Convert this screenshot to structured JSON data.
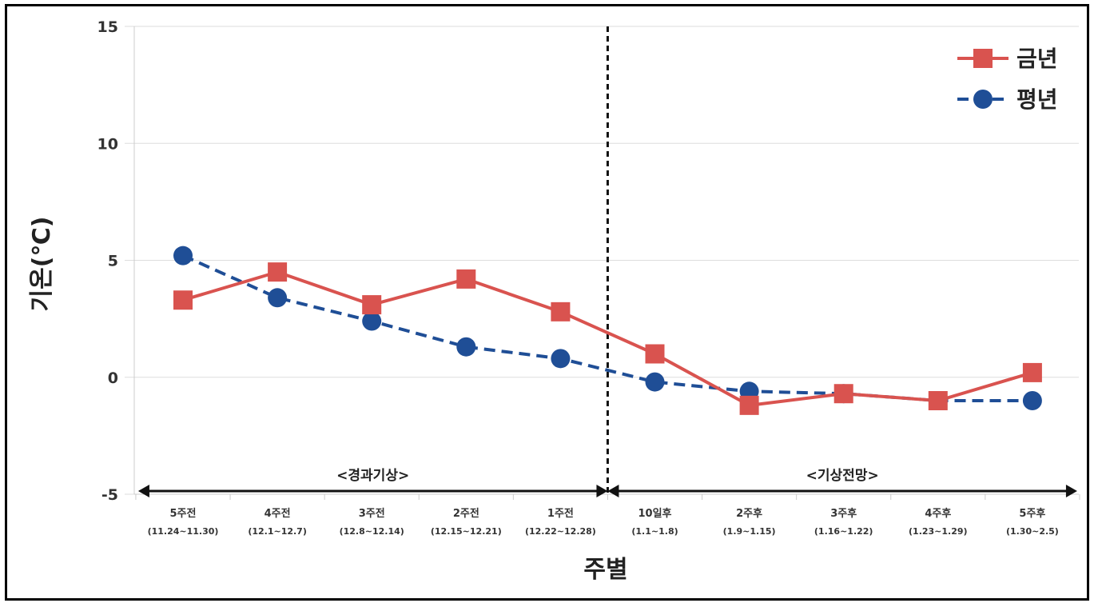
{
  "chart_data": {
    "type": "line",
    "xlabel": "주별",
    "ylabel": "기온(℃)",
    "ylim": [
      -5,
      15
    ],
    "yticks": [
      -5,
      0,
      5,
      10,
      15
    ],
    "grid": "horizontal",
    "legend_position": "top-right",
    "categories": [
      "5주전",
      "4주전",
      "3주전",
      "2주전",
      "1주전",
      "10일후",
      "2주후",
      "3주후",
      "4주후",
      "5주후"
    ],
    "category_ranges": [
      "(11.24~11.30)",
      "(12.1~12.7)",
      "(12.8~12.14)",
      "(12.15~12.21)",
      "(12.22~12.28)",
      "(1.1~1.8)",
      "(1.9~1.15)",
      "(1.16~1.22)",
      "(1.23~1.29)",
      "(1.30~2.5)"
    ],
    "series": [
      {
        "name": "금년",
        "color": "#d9534f",
        "marker": "square",
        "dash": "solid",
        "values": [
          3.3,
          4.5,
          3.1,
          4.2,
          2.8,
          1.0,
          -1.2,
          -0.7,
          -1.0,
          0.2
        ]
      },
      {
        "name": "평년",
        "color": "#1f4e96",
        "marker": "circle",
        "dash": "dashed",
        "values": [
          5.2,
          3.4,
          2.4,
          1.3,
          0.8,
          -0.2,
          -0.6,
          -0.7,
          -1.0,
          -1.0
        ]
      }
    ],
    "annotations": [
      {
        "label": "<경과기상>",
        "from_index": 0,
        "to_index": 4
      },
      {
        "label": "<기상전망>",
        "from_index": 5,
        "to_index": 9
      }
    ],
    "divider_between": [
      4,
      5
    ]
  }
}
